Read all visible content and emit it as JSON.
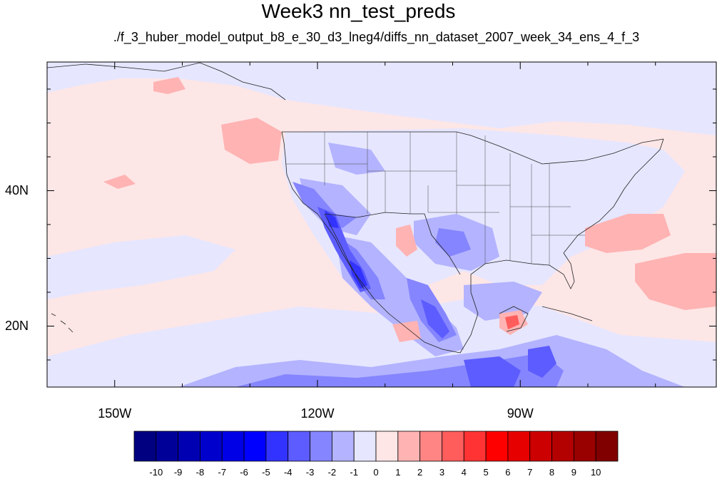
{
  "title": "Week3 nn_test_preds",
  "subtitle": "./f_3_huber_model_output_b8_e_30_d3_lneg4/diffs_nn_dataset_2007_week_34_ens_4_f_3",
  "map": {
    "projection": "cylindrical-equidistant",
    "lon_range": [
      -160,
      -61
    ],
    "lat_range": [
      11,
      59
    ],
    "lon_tick_labels": [
      {
        "lon": -150,
        "label": "150W"
      },
      {
        "lon": -120,
        "label": "120W"
      },
      {
        "lon": -90,
        "label": "90W"
      }
    ],
    "lat_tick_labels": [
      {
        "lat": 40,
        "label": "40N"
      },
      {
        "lat": 20,
        "label": "20N"
      }
    ],
    "background_color": "#fde6e6"
  },
  "colorbar": {
    "labels": [
      "-10",
      "-9",
      "-8",
      "-7",
      "-6",
      "-5",
      "-4",
      "-3",
      "-2",
      "-1",
      "0",
      "1",
      "2",
      "3",
      "4",
      "5",
      "6",
      "7",
      "8",
      "9",
      "10"
    ],
    "colors": [
      "#000080",
      "#000099",
      "#0000b3",
      "#0000cc",
      "#0000e6",
      "#0000ff",
      "#3333ff",
      "#5c5cff",
      "#8585ff",
      "#b3b3ff",
      "#e6e6ff",
      "#ffe6e6",
      "#ffb3b3",
      "#ff8585",
      "#ff5c5c",
      "#ff3333",
      "#ff0000",
      "#e60000",
      "#cc0000",
      "#b30000",
      "#990000",
      "#800000"
    ]
  }
}
